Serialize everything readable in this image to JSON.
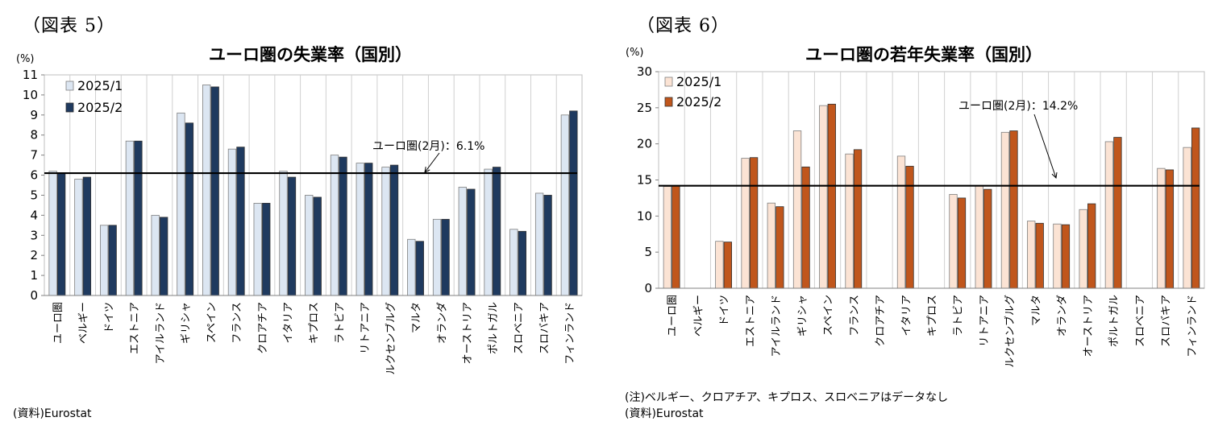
{
  "chart_data": [
    {
      "type": "bar",
      "fig_label": "（図表 5）",
      "title": "ユーロ圏の失業率（国別）",
      "unit": "(%)",
      "ylim": [
        0,
        11
      ],
      "yticks": [
        0,
        1,
        2,
        3,
        4,
        5,
        6,
        7,
        8,
        9,
        10,
        11
      ],
      "grid": true,
      "legend_position": "top-left",
      "categories": [
        "ユーロ圏",
        "ベルギー",
        "ドイツ",
        "エストニア",
        "アイルランド",
        "ギリシャ",
        "スペイン",
        "フランス",
        "クロアチア",
        "イタリア",
        "キプロス",
        "ラトビア",
        "リトアニア",
        "ルクセンブルグ",
        "マルタ",
        "オランダ",
        "オーストリア",
        "ポルトガル",
        "スロベニア",
        "スロバキア",
        "フィンランド"
      ],
      "series": [
        {
          "name": "2025/1",
          "color": "#dce6f2",
          "values": [
            6.2,
            5.8,
            3.5,
            7.7,
            4.0,
            9.1,
            10.5,
            7.3,
            4.6,
            6.2,
            5.0,
            7.0,
            6.6,
            6.4,
            2.8,
            3.8,
            5.4,
            6.3,
            3.3,
            5.1,
            9.0
          ]
        },
        {
          "name": "2025/2",
          "color": "#1f3a5f",
          "values": [
            6.1,
            5.9,
            3.5,
            7.7,
            3.9,
            8.6,
            10.4,
            7.4,
            4.6,
            5.9,
            4.9,
            6.9,
            6.6,
            6.5,
            2.7,
            3.8,
            5.3,
            6.4,
            3.2,
            5.0,
            9.2
          ]
        }
      ],
      "reference_line": {
        "value": 6.1,
        "label": "ユーロ圏(2月)：6.1%"
      },
      "notes": [
        "(資料)Eurostat"
      ]
    },
    {
      "type": "bar",
      "fig_label": "（図表 6）",
      "title": "ユーロ圏の若年失業率（国別）",
      "unit": "(%)",
      "ylim": [
        0,
        30
      ],
      "yticks": [
        0,
        5,
        10,
        15,
        20,
        25,
        30
      ],
      "grid": true,
      "legend_position": "top-left",
      "categories": [
        "ユーロ圏",
        "ベルギー",
        "ドイツ",
        "エストニア",
        "アイルランド",
        "ギリシャ",
        "スペイン",
        "フランス",
        "クロアチア",
        "イタリア",
        "キプロス",
        "ラトビア",
        "リトアニア",
        "ルクセンブルグ",
        "マルタ",
        "オランダ",
        "オーストリア",
        "ポルトガル",
        "スロベニア",
        "スロバキア",
        "フィンランド"
      ],
      "series": [
        {
          "name": "2025/1",
          "color": "#fbe3d4",
          "values": [
            14.1,
            null,
            6.5,
            18.0,
            11.8,
            21.8,
            25.3,
            18.6,
            null,
            18.3,
            null,
            13.0,
            14.2,
            21.6,
            9.3,
            8.9,
            10.9,
            20.3,
            null,
            16.6,
            19.5
          ]
        },
        {
          "name": "2025/2",
          "color": "#c0561c",
          "values": [
            14.2,
            null,
            6.4,
            18.1,
            11.3,
            16.8,
            25.5,
            19.2,
            null,
            16.9,
            null,
            12.5,
            13.7,
            21.8,
            9.0,
            8.8,
            11.7,
            20.9,
            null,
            16.4,
            22.2
          ]
        }
      ],
      "reference_line": {
        "value": 14.2,
        "label": "ユーロ圏(2月)：14.2%"
      },
      "notes": [
        "(注)ベルギー、クロアチア、キプロス、スロベニアはデータなし",
        "(資料)Eurostat"
      ]
    }
  ]
}
